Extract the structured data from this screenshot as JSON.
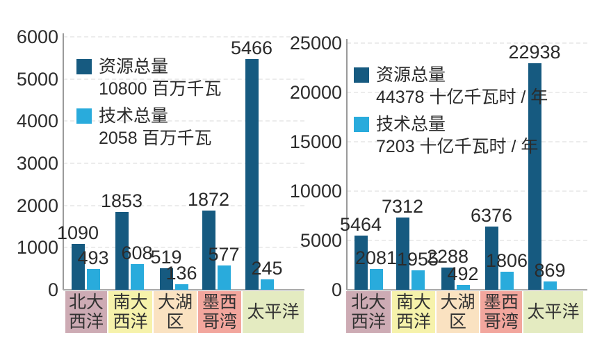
{
  "figure": {
    "background": "#ffffff"
  },
  "colors": {
    "resource_bar": "#165a80",
    "technical_bar": "#29abdc",
    "axis_line": "#9a9a9a",
    "grid_line": "#ececec",
    "text": "#2d2d2d"
  },
  "chart_data": [
    {
      "type": "bar",
      "title": "",
      "xlabel": "",
      "ylabel": "",
      "unit": "百万千瓦",
      "ylim": [
        0,
        6000
      ],
      "yticks": [
        0,
        1000,
        2000,
        3000,
        4000,
        5000,
        6000
      ],
      "grid": "dashed-horizontal",
      "legend_position": "top-left-inside",
      "categories": [
        "北大西洋",
        "南大西洋",
        "大湖区",
        "墨西哥湾",
        "太平洋"
      ],
      "category_lines": [
        [
          "北大",
          "西洋"
        ],
        [
          "南大",
          "西洋"
        ],
        [
          "大湖",
          "区"
        ],
        [
          "墨西",
          "哥湾"
        ],
        [
          "太平洋"
        ]
      ],
      "category_colors": [
        "#cdabb4",
        "#f6f2ab",
        "#fae2c1",
        "#f2a69d",
        "#e4ebc1"
      ],
      "series": [
        {
          "name": "资源总量",
          "total_label": "10800 百万千瓦",
          "color": "#165a80",
          "values": [
            1090,
            1853,
            519,
            1872,
            5466
          ]
        },
        {
          "name": "技术总量",
          "total_label": "2058 百万千瓦",
          "color": "#29abdc",
          "values": [
            493,
            608,
            136,
            577,
            245
          ]
        }
      ]
    },
    {
      "type": "bar",
      "title": "",
      "xlabel": "",
      "ylabel": "",
      "unit": "十亿千瓦时 / 年",
      "ylim": [
        0,
        25000
      ],
      "yticks": [
        0,
        5000,
        10000,
        15000,
        20000,
        25000
      ],
      "grid": "dashed-horizontal",
      "legend_position": "top-left-inside",
      "categories": [
        "北大西洋",
        "南大西洋",
        "大湖区",
        "墨西哥湾",
        "太平洋"
      ],
      "category_lines": [
        [
          "北大",
          "西洋"
        ],
        [
          "南大",
          "西洋"
        ],
        [
          "大湖",
          "区"
        ],
        [
          "墨西",
          "哥湾"
        ],
        [
          "太平洋"
        ]
      ],
      "category_colors": [
        "#cdabb4",
        "#f6f2ab",
        "#fae2c1",
        "#f2a69d",
        "#e4ebc1"
      ],
      "series": [
        {
          "name": "资源总量",
          "total_label": "44378 十亿千瓦时 / 年",
          "color": "#165a80",
          "values": [
            5464,
            7312,
            2288,
            6376,
            22938
          ]
        },
        {
          "name": "技术总量",
          "total_label": "7203 十亿千瓦时 / 年",
          "color": "#29abdc",
          "values": [
            2081,
            1955,
            492,
            1806,
            869
          ]
        }
      ]
    }
  ]
}
